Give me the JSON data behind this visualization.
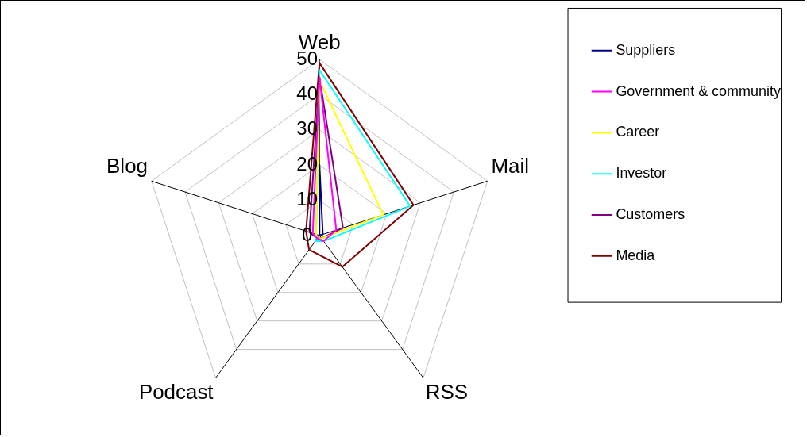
{
  "chart_data": {
    "type": "radar",
    "categories": [
      "Web",
      "Mail",
      "RSS",
      "Podcast",
      "Blog"
    ],
    "series": [
      {
        "name": "Suppliers",
        "color": "#000080",
        "values": [
          20,
          1,
          0,
          0,
          0
        ]
      },
      {
        "name": "Government & community",
        "color": "#ff00ff",
        "values": [
          45,
          5,
          2,
          1,
          2
        ]
      },
      {
        "name": "Career",
        "color": "#ffff00",
        "values": [
          44,
          19,
          1,
          1,
          1
        ]
      },
      {
        "name": "Investor",
        "color": "#00ffff",
        "values": [
          47,
          27,
          2,
          2,
          1
        ]
      },
      {
        "name": "Customers",
        "color": "#800080",
        "values": [
          45,
          7,
          1,
          1,
          3
        ]
      },
      {
        "name": "Media",
        "color": "#800000",
        "values": [
          49,
          28,
          11,
          5,
          4
        ]
      }
    ],
    "ylim": [
      0,
      50
    ],
    "yticks": [
      0,
      10,
      20,
      30,
      40,
      50
    ],
    "grid": true,
    "legend": "right",
    "marker": "none",
    "line_style": "solid"
  }
}
